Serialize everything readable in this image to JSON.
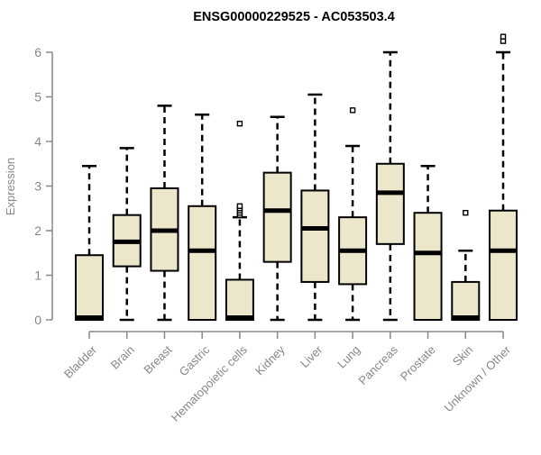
{
  "chart_data": {
    "type": "boxplot",
    "title": "ENSG00000229525 - AC053503.4",
    "xlabel": "",
    "ylabel": "Expression",
    "ylim": [
      0,
      6
    ],
    "yticks": [
      0,
      1,
      2,
      3,
      4,
      5,
      6
    ],
    "grid": false,
    "legend": "none",
    "categories": [
      "Bladder",
      "Brain",
      "Breast",
      "Gastric",
      "Hematopoietic cells",
      "Kidney",
      "Liver",
      "Lung",
      "Pancreas",
      "Prostate",
      "Skin",
      "Unknown / Other"
    ],
    "series": [
      {
        "category": "Bladder",
        "whisker_low": 0,
        "q1": 0,
        "median": 0.05,
        "q3": 1.45,
        "whisker_high": 3.45,
        "outliers": []
      },
      {
        "category": "Brain",
        "whisker_low": 0,
        "q1": 1.2,
        "median": 1.75,
        "q3": 2.35,
        "whisker_high": 3.85,
        "outliers": []
      },
      {
        "category": "Breast",
        "whisker_low": 0,
        "q1": 1.1,
        "median": 2.0,
        "q3": 2.95,
        "whisker_high": 4.8,
        "outliers": []
      },
      {
        "category": "Gastric",
        "whisker_low": 0,
        "q1": 0,
        "median": 1.55,
        "q3": 2.55,
        "whisker_high": 4.6,
        "outliers": []
      },
      {
        "category": "Hematopoietic cells",
        "whisker_low": 0,
        "q1": 0,
        "median": 0.05,
        "q3": 0.9,
        "whisker_high": 2.3,
        "outliers": [
          2.35,
          2.4,
          2.45,
          2.5,
          2.55,
          4.4
        ]
      },
      {
        "category": "Kidney",
        "whisker_low": 0,
        "q1": 1.3,
        "median": 2.45,
        "q3": 3.3,
        "whisker_high": 4.55,
        "outliers": []
      },
      {
        "category": "Liver",
        "whisker_low": 0,
        "q1": 0.85,
        "median": 2.05,
        "q3": 2.9,
        "whisker_high": 5.05,
        "outliers": []
      },
      {
        "category": "Lung",
        "whisker_low": 0,
        "q1": 0.8,
        "median": 1.55,
        "q3": 2.3,
        "whisker_high": 3.9,
        "outliers": [
          4.7
        ]
      },
      {
        "category": "Pancreas",
        "whisker_low": 0,
        "q1": 1.7,
        "median": 2.85,
        "q3": 3.5,
        "whisker_high": 6.0,
        "outliers": []
      },
      {
        "category": "Prostate",
        "whisker_low": 0,
        "q1": 0,
        "median": 1.5,
        "q3": 2.4,
        "whisker_high": 3.45,
        "outliers": []
      },
      {
        "category": "Skin",
        "whisker_low": 0,
        "q1": 0,
        "median": 0.05,
        "q3": 0.85,
        "whisker_high": 1.55,
        "outliers": [
          2.4
        ]
      },
      {
        "category": "Unknown / Other",
        "whisker_low": 0,
        "q1": 0,
        "median": 1.55,
        "q3": 2.45,
        "whisker_high": 6.0,
        "outliers": [
          6.25,
          6.35
        ]
      }
    ],
    "colors": {
      "box_fill": "#ECE6CB",
      "box_border": "#000000",
      "median": "#000000",
      "whisker": "#000000",
      "axis": "#878787",
      "tick_label": "#878787",
      "title": "#000000"
    }
  }
}
